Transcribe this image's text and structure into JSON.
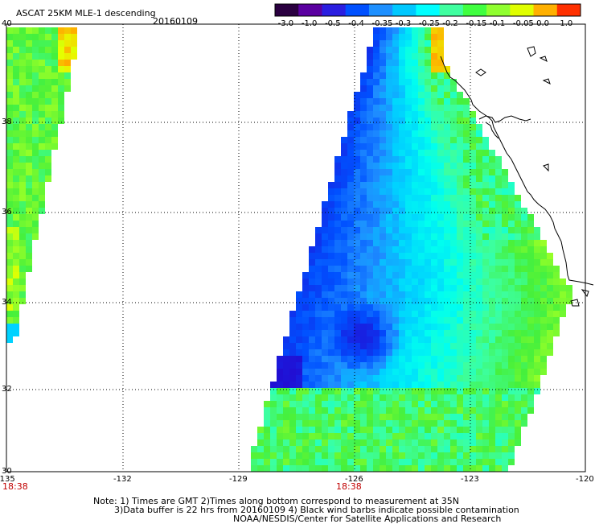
{
  "title": {
    "product": "ASCAT 25KM MLE-1 descending",
    "date": "20160109"
  },
  "colorbar": {
    "ticks": [
      "-3.0",
      "-1.0",
      "-0.5",
      "-0.4",
      "-0.35",
      "-0.3",
      "-0.25",
      "-0.2",
      "-0.15",
      "-0.1",
      "-0.05",
      "0.0",
      "1.0"
    ],
    "colors": [
      "#2a0040",
      "#5a00a0",
      "#2a1ee0",
      "#0050ff",
      "#1e90ff",
      "#00c8ff",
      "#00ffff",
      "#40ffa0",
      "#40ff40",
      "#90ff30",
      "#e0ff00",
      "#ffb000",
      "#ff3000"
    ]
  },
  "axes": {
    "lat_labels": [
      "40",
      "38",
      "36",
      "34",
      "32",
      "30"
    ],
    "lon_labels": [
      "-135",
      "-132",
      "-129",
      "-126",
      "-123",
      "-120"
    ]
  },
  "time_labels": [
    {
      "text": "18:38"
    },
    {
      "text": "18:38"
    }
  ],
  "notes": [
    "Note: 1) Times are GMT 2)Times along bottom correspond to measurement at 35N",
    "3)Data buffer is 22 hrs from 20160109 4) Black wind barbs indicate possible contamination",
    "NOAA/NESDIS/Center for Satellite Applications and Research"
  ]
}
